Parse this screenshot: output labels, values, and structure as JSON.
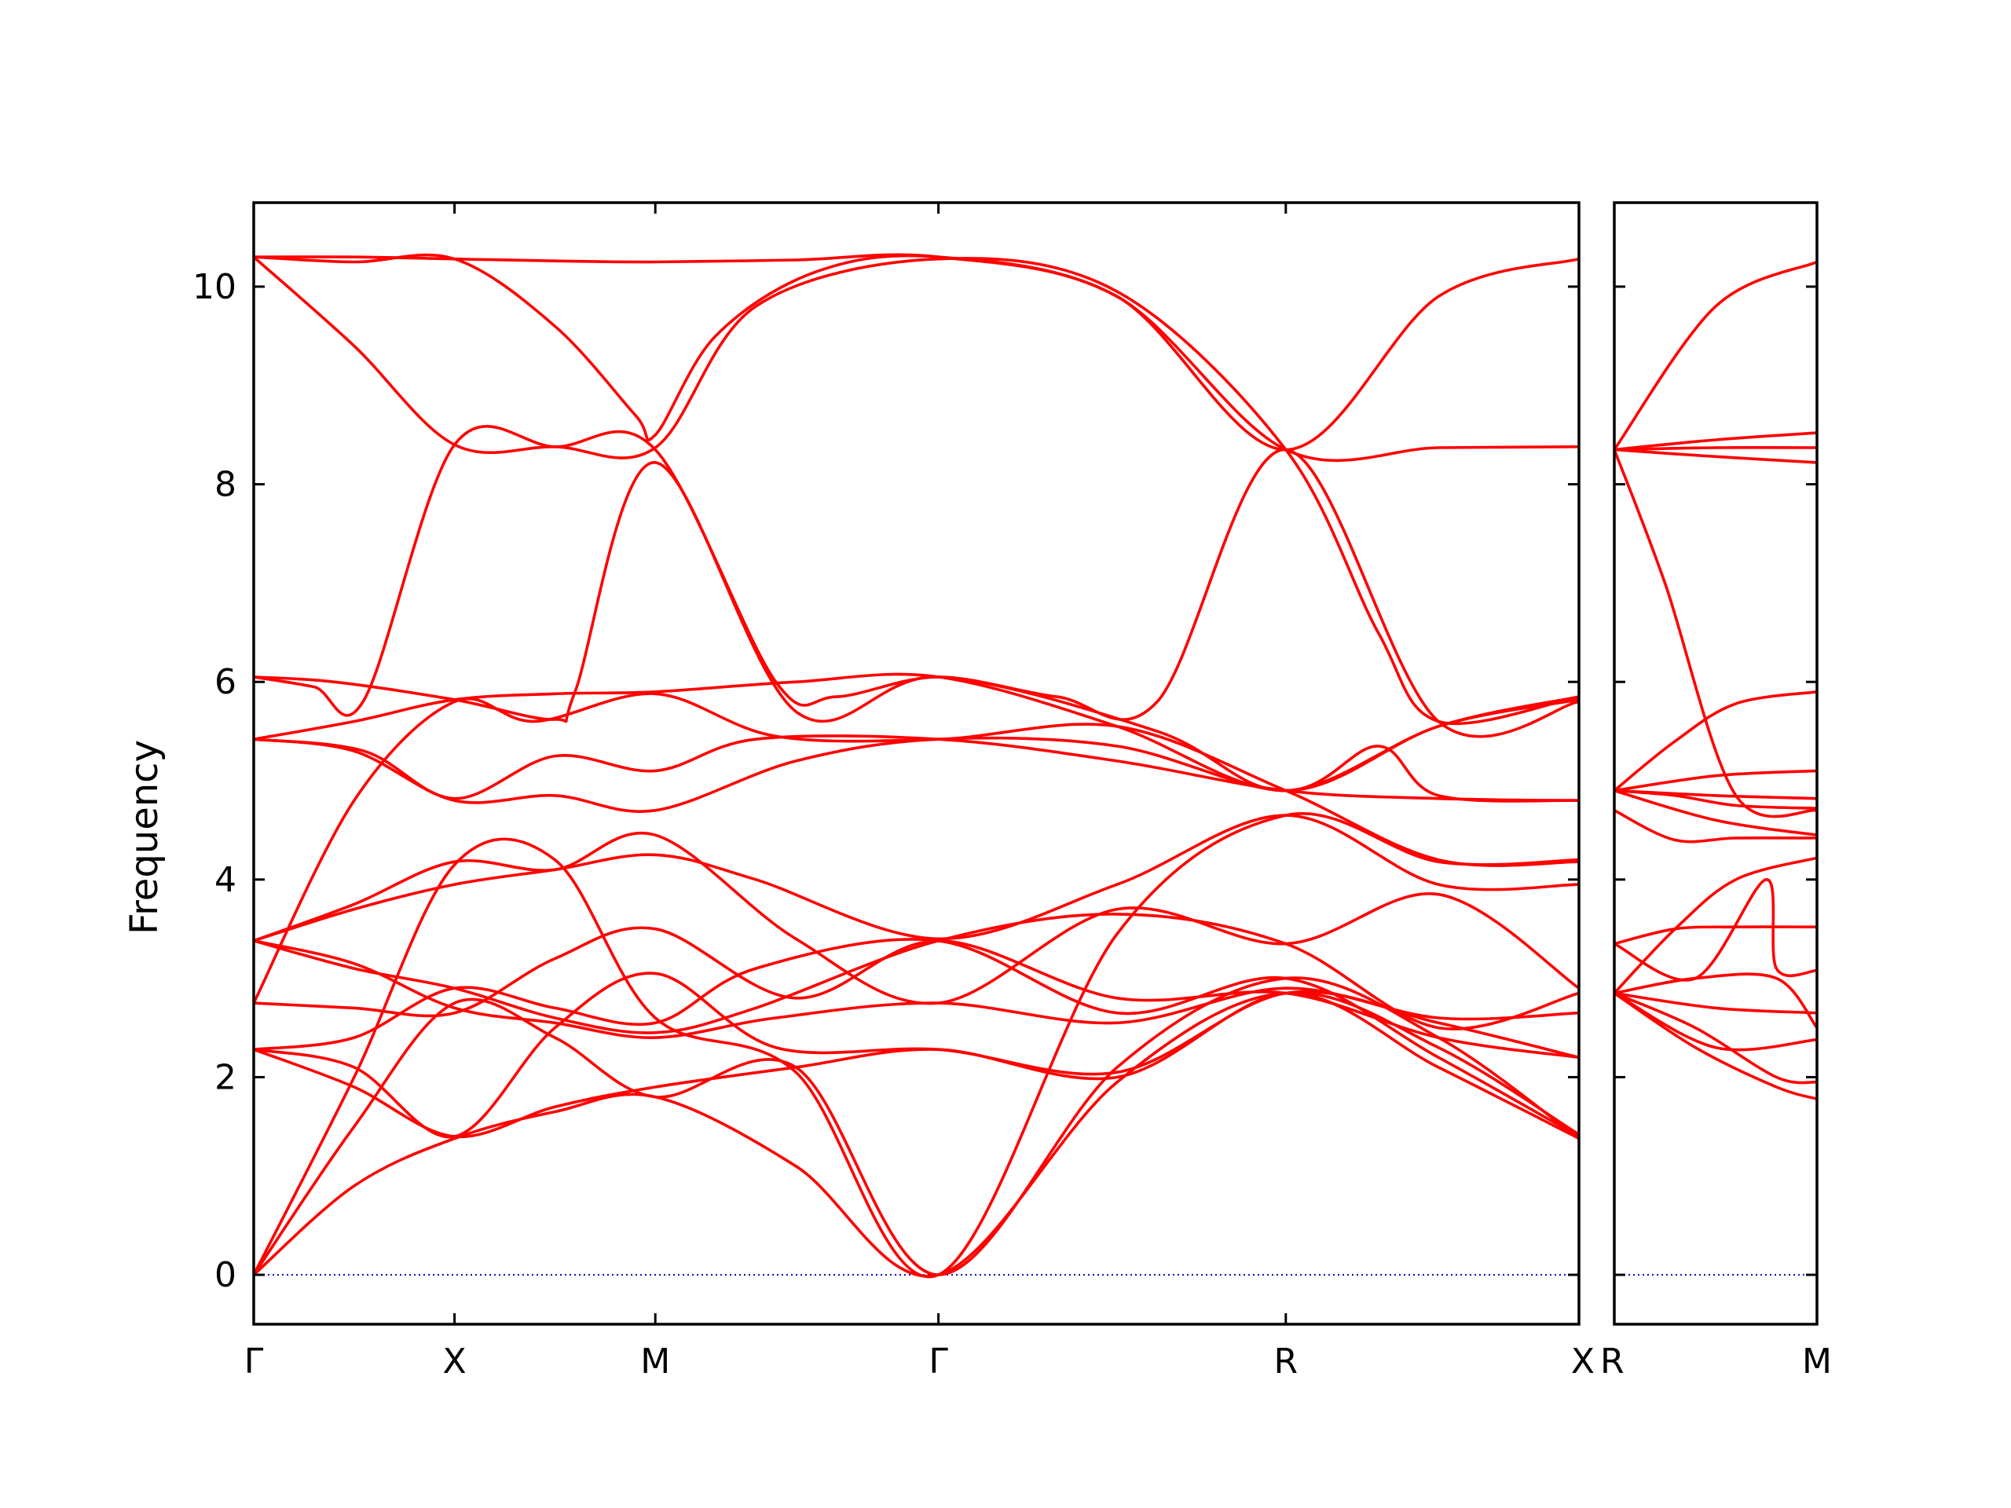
{
  "chart_data": {
    "type": "line",
    "title": "",
    "ylabel": "Frequency",
    "xlabel": "",
    "ylim": [
      -0.5,
      10.85
    ],
    "yticks": [
      0,
      2,
      4,
      6,
      8,
      10
    ],
    "grid": false,
    "legend": "none",
    "colors": {
      "bands": "#ff0000",
      "zero_line": "#0000cc",
      "axes": "#000000"
    },
    "panels": [
      {
        "name": "main",
        "path_coordinate_range": [
          0,
          6.6
        ],
        "xticks": [
          {
            "label": "Γ",
            "value": 0
          },
          {
            "label": "X",
            "value": 1.0
          },
          {
            "label": "M",
            "value": 2.0
          },
          {
            "label": "Γ",
            "value": 3.41
          },
          {
            "label": "R",
            "value": 5.14
          },
          {
            "label": "X",
            "value": 6.6
          }
        ],
        "bands": [
          {
            "x": [
              0,
              0.5,
              1.0,
              1.5,
              2.0,
              2.7,
              3.41,
              4.3,
              5.14,
              5.9,
              6.6
            ],
            "y": [
              10.3,
              10.3,
              10.28,
              10.26,
              10.25,
              10.27,
              10.3,
              9.9,
              8.35,
              8.37,
              8.38
            ]
          },
          {
            "x": [
              0,
              0.5,
              1.0,
              1.5,
              1.9,
              2.0,
              2.3,
              2.8,
              3.41,
              4.3,
              5.14,
              5.9,
              6.6
            ],
            "y": [
              10.3,
              10.25,
              10.28,
              9.6,
              8.7,
              8.5,
              9.5,
              10.15,
              10.3,
              9.9,
              8.35,
              9.9,
              10.28
            ]
          },
          {
            "x": [
              0,
              0.5,
              1.0,
              1.5,
              2.0,
              2.5,
              3.41,
              4.3,
              5.14,
              5.6,
              5.9,
              6.6
            ],
            "y": [
              10.3,
              9.4,
              8.4,
              8.38,
              8.37,
              9.8,
              10.28,
              9.95,
              8.35,
              6.5,
              5.6,
              5.85
            ]
          },
          {
            "x": [
              0,
              0.3,
              0.55,
              1.0,
              1.5,
              2.0,
              2.6,
              2.9,
              3.41,
              4.0,
              4.5,
              5.14,
              5.9,
              6.6
            ],
            "y": [
              6.05,
              5.95,
              5.82,
              8.4,
              8.38,
              8.35,
              6.0,
              5.85,
              6.05,
              5.85,
              5.8,
              8.35,
              5.6,
              5.8
            ]
          },
          {
            "x": [
              0,
              0.4,
              1.0,
              1.5,
              1.6,
              2.0,
              2.7,
              3.41,
              4.5,
              5.14,
              5.9,
              6.6
            ],
            "y": [
              6.05,
              6.0,
              5.82,
              5.62,
              5.9,
              8.22,
              5.7,
              6.05,
              5.5,
              4.9,
              5.55,
              5.85
            ]
          },
          {
            "x": [
              0,
              0.5,
              1.0,
              1.5,
              2.0,
              2.7,
              3.41,
              4.3,
              5.14,
              5.9,
              6.6
            ],
            "y": [
              5.42,
              5.6,
              5.82,
              5.88,
              5.9,
              6.0,
              6.05,
              5.55,
              4.9,
              5.55,
              5.82
            ]
          },
          {
            "x": [
              0,
              0.5,
              1.0,
              1.5,
              2.0,
              2.7,
              3.41,
              4.3,
              5.14,
              5.6,
              5.9,
              6.6
            ],
            "y": [
              5.42,
              5.3,
              4.8,
              4.85,
              4.7,
              5.2,
              5.42,
              5.35,
              4.9,
              5.35,
              4.85,
              4.8
            ]
          },
          {
            "x": [
              0,
              0.55,
              1.0,
              1.5,
              2.0,
              2.5,
              3.41,
              4.3,
              5.14,
              5.9,
              6.6
            ],
            "y": [
              5.42,
              5.3,
              4.82,
              5.25,
              5.1,
              5.42,
              5.42,
              5.2,
              4.9,
              4.82,
              4.8
            ]
          },
          {
            "x": [
              0,
              0.5,
              1.0,
              1.4,
              2.0,
              2.6,
              3.41,
              4.3,
              5.14,
              5.9,
              6.6
            ],
            "y": [
              2.75,
              4.8,
              5.8,
              5.6,
              5.88,
              5.45,
              5.42,
              5.55,
              4.9,
              4.2,
              4.18
            ]
          },
          {
            "x": [
              0,
              0.5,
              1.0,
              1.5,
              2.0,
              2.5,
              3.41,
              4.3,
              5.14,
              5.9,
              6.6
            ],
            "y": [
              3.38,
              3.7,
              3.95,
              4.1,
              4.25,
              4.0,
              3.4,
              3.95,
              4.65,
              3.95,
              3.95
            ]
          },
          {
            "x": [
              0,
              0.5,
              1.0,
              1.5,
              2.0,
              2.7,
              3.41,
              4.3,
              5.14,
              5.9,
              6.6
            ],
            "y": [
              3.38,
              3.75,
              4.18,
              4.1,
              4.45,
              3.4,
              2.75,
              3.7,
              3.35,
              3.85,
              2.9
            ]
          },
          {
            "x": [
              0,
              0.5,
              1.0,
              1.5,
              2.0,
              2.5,
              3.41,
              4.3,
              5.14,
              5.9,
              6.6
            ],
            "y": [
              3.38,
              3.1,
              2.9,
              2.6,
              2.45,
              2.7,
              3.38,
              3.65,
              3.35,
              2.5,
              2.85
            ]
          },
          {
            "x": [
              0,
              0.5,
              1.0,
              1.5,
              2.0,
              2.6,
              3.41,
              4.3,
              5.14,
              5.9,
              6.6
            ],
            "y": [
              3.38,
              3.15,
              2.7,
              2.55,
              2.4,
              2.6,
              2.75,
              2.55,
              2.9,
              2.6,
              2.65
            ]
          },
          {
            "x": [
              0,
              0.5,
              1.0,
              1.5,
              2.0,
              2.7,
              3.41,
              4.3,
              5.14,
              5.9,
              6.6
            ],
            "y": [
              2.75,
              2.7,
              2.65,
              3.2,
              3.5,
              2.8,
              3.38,
              2.8,
              2.85,
              2.4,
              2.2
            ]
          },
          {
            "x": [
              0,
              0.5,
              1.0,
              1.5,
              2.0,
              2.5,
              3.41,
              4.3,
              5.14,
              5.9,
              6.6
            ],
            "y": [
              2.28,
              2.4,
              2.9,
              2.7,
              2.55,
              3.1,
              3.38,
              2.65,
              3.0,
              2.2,
              1.4
            ]
          },
          {
            "x": [
              0,
              0.5,
              1.0,
              1.5,
              2.0,
              2.6,
              3.41,
              4.3,
              5.14,
              5.9,
              6.6
            ],
            "y": [
              2.28,
              2.1,
              1.4,
              2.5,
              3.05,
              2.3,
              2.28,
              2.05,
              2.85,
              2.55,
              2.2
            ]
          },
          {
            "x": [
              0,
              0.5,
              1.0,
              1.5,
              2.0,
              2.7,
              3.41,
              4.3,
              5.14,
              5.9,
              6.6
            ],
            "y": [
              2.28,
              1.9,
              1.4,
              1.7,
              1.9,
              2.1,
              2.28,
              2.0,
              2.85,
              2.3,
              1.42
            ]
          },
          {
            "x": [
              0,
              0.5,
              1.0,
              1.5,
              2.0,
              2.7,
              3.41,
              4.3,
              5.14,
              5.9,
              6.6
            ],
            "y": [
              0,
              1.5,
              2.75,
              2.4,
              1.8,
              2.1,
              0,
              2.1,
              3.0,
              2.4,
              1.38
            ]
          },
          {
            "x": [
              0,
              0.5,
              1.0,
              1.5,
              2.0,
              2.7,
              3.41,
              4.3,
              5.14,
              5.9,
              6.6
            ],
            "y": [
              0,
              2.0,
              4.15,
              4.2,
              2.6,
              2.05,
              0,
              3.45,
              4.65,
              4.18,
              4.2
            ]
          },
          {
            "x": [
              0,
              0.5,
              1.0,
              1.5,
              2.0,
              2.7,
              3.41,
              4.3,
              5.14,
              5.9,
              6.6
            ],
            "y": [
              0,
              0.9,
              1.38,
              1.65,
              1.8,
              1.1,
              0,
              1.95,
              2.85,
              2.1,
              1.38
            ]
          }
        ]
      },
      {
        "name": "R-M",
        "path_coordinate_range": [
          0,
          1.0
        ],
        "xticks": [
          {
            "label": "R",
            "value": 0
          },
          {
            "label": "M",
            "value": 1.0
          }
        ],
        "bands": [
          {
            "x": [
              0,
              0.5,
              1.0
            ],
            "y": [
              8.35,
              9.8,
              10.25
            ]
          },
          {
            "x": [
              0,
              0.5,
              1.0
            ],
            "y": [
              8.35,
              8.45,
              8.52
            ]
          },
          {
            "x": [
              0,
              0.5,
              1.0
            ],
            "y": [
              8.35,
              8.37,
              8.37
            ]
          },
          {
            "x": [
              0,
              0.5,
              1.0
            ],
            "y": [
              8.35,
              8.28,
              8.22
            ]
          },
          {
            "x": [
              0,
              0.25,
              0.6,
              1.0
            ],
            "y": [
              8.35,
              7.0,
              4.85,
              4.7
            ]
          },
          {
            "x": [
              0,
              0.3,
              0.6,
              1.0
            ],
            "y": [
              4.9,
              5.4,
              5.78,
              5.9
            ]
          },
          {
            "x": [
              0,
              0.5,
              1.0
            ],
            "y": [
              4.9,
              5.05,
              5.1
            ]
          },
          {
            "x": [
              0,
              0.5,
              1.0
            ],
            "y": [
              4.9,
              4.85,
              4.82
            ]
          },
          {
            "x": [
              0,
              0.3,
              0.6,
              1.0
            ],
            "y": [
              4.9,
              4.85,
              4.75,
              4.72
            ]
          },
          {
            "x": [
              0,
              0.5,
              1.0
            ],
            "y": [
              4.9,
              4.6,
              4.45
            ]
          },
          {
            "x": [
              0,
              0.3,
              0.6,
              1.0
            ],
            "y": [
              4.7,
              4.4,
              4.42,
              4.42
            ]
          },
          {
            "x": [
              0,
              0.3,
              0.6,
              1.0
            ],
            "y": [
              2.85,
              3.5,
              4.0,
              4.22
            ]
          },
          {
            "x": [
              0,
              0.3,
              0.6,
              1.0
            ],
            "y": [
              3.35,
              3.5,
              3.52,
              3.52
            ]
          },
          {
            "x": [
              0,
              0.4,
              0.75,
              0.8,
              1.0
            ],
            "y": [
              3.35,
              3.0,
              4.0,
              3.1,
              3.08
            ]
          },
          {
            "x": [
              0,
              0.4,
              0.8,
              1.0
            ],
            "y": [
              2.85,
              3.0,
              3.0,
              2.5
            ]
          },
          {
            "x": [
              0,
              0.5,
              1.0
            ],
            "y": [
              2.85,
              2.7,
              2.65
            ]
          },
          {
            "x": [
              0,
              0.5,
              1.0
            ],
            "y": [
              2.85,
              2.3,
              2.38
            ]
          },
          {
            "x": [
              0,
              0.4,
              0.8,
              1.0
            ],
            "y": [
              2.85,
              2.5,
              2.0,
              1.95
            ]
          },
          {
            "x": [
              0,
              0.4,
              0.8,
              1.0
            ],
            "y": [
              2.85,
              2.3,
              1.9,
              1.78
            ]
          }
        ]
      }
    ]
  }
}
